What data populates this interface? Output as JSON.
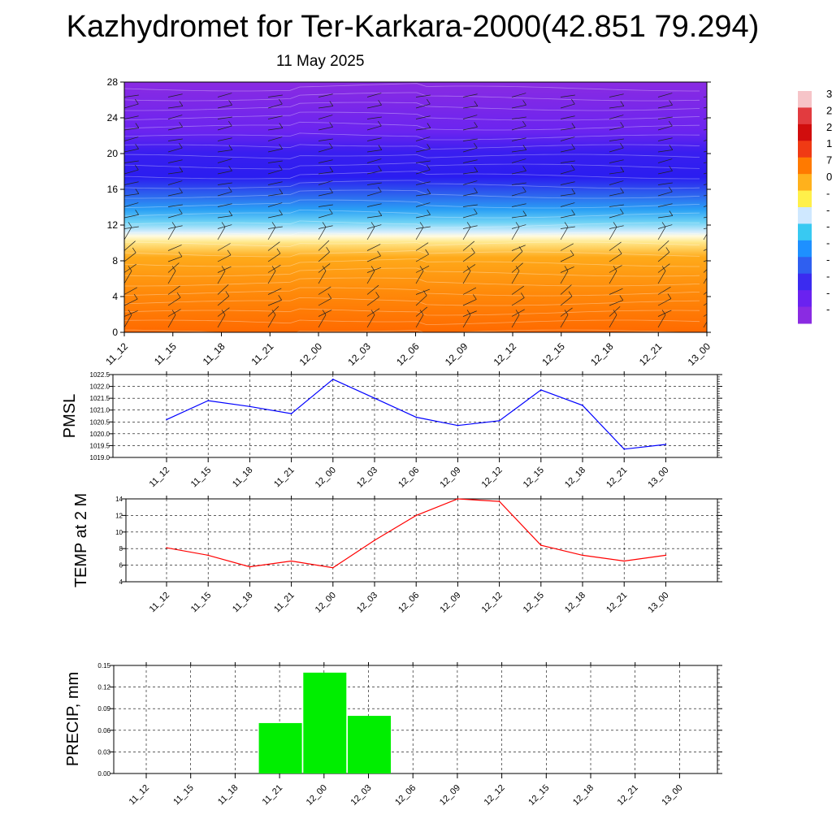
{
  "title": "Kazhydromet for Ter-Karkara-2000(42.851 79.294)",
  "subtitle": "11 May 2025",
  "time_labels": [
    "11_12",
    "11_15",
    "11_18",
    "11_21",
    "12_00",
    "12_03",
    "12_06",
    "12_09",
    "12_12",
    "12_15",
    "12_18",
    "12_21",
    "13_00"
  ],
  "chart_data": [
    {
      "type": "heatmap",
      "title": "",
      "xlabel": "",
      "ylabel": "",
      "categories": [
        "11_12",
        "11_15",
        "11_18",
        "11_21",
        "12_00",
        "12_03",
        "12_06",
        "12_09",
        "12_12",
        "12_15",
        "12_18",
        "12_21",
        "13_00"
      ],
      "y_ticks": [
        0,
        4,
        8,
        12,
        16,
        20,
        24,
        28
      ],
      "ylim": [
        0,
        28
      ],
      "overlay": "wind barbs",
      "colorbar": {
        "visible_labels": [
          "3",
          "2",
          "2",
          "1",
          "7",
          "0",
          "-",
          "-",
          "-",
          "-",
          "-",
          "-",
          "-",
          "-"
        ],
        "colors": [
          "#f6c4c8",
          "#e23b3f",
          "#d10d0d",
          "#f03a14",
          "#ff7a00",
          "#ffb11c",
          "#fff04a",
          "#cfe8ff",
          "#38c9f2",
          "#1e90ff",
          "#2f5ff0",
          "#3b2bf0",
          "#6a22f0",
          "#8a2be2"
        ]
      },
      "colors": {
        "high": "#8a2be2",
        "mid_high": "#2a1cf0",
        "mid": "#38c9f2",
        "transition": "#fff3b0",
        "low_mid": "#ffb11c",
        "low": "#ff6e00"
      }
    },
    {
      "type": "line",
      "ylabel": "PMSL",
      "x": [
        "11_12",
        "11_15",
        "11_18",
        "11_21",
        "12_00",
        "12_03",
        "12_06",
        "12_09",
        "12_12",
        "12_15",
        "12_18",
        "12_21",
        "13_00"
      ],
      "y": [
        1020.6,
        1021.4,
        1021.15,
        1020.85,
        1022.3,
        1021.5,
        1020.7,
        1020.35,
        1020.55,
        1021.85,
        1021.2,
        1019.35,
        1019.55
      ],
      "y_ticks": [
        "1019.0",
        "1019.5",
        "1020.0",
        "1020.5",
        "1021.0",
        "1021.5",
        "1022.0",
        "1022.5"
      ],
      "ylim": [
        1019.0,
        1022.5
      ],
      "grid": true,
      "color": "#0000ff"
    },
    {
      "type": "line",
      "ylabel": "TEMP at 2 M",
      "x": [
        "11_12",
        "11_15",
        "11_18",
        "11_21",
        "12_00",
        "12_03",
        "12_06",
        "12_09",
        "12_12",
        "12_15",
        "12_18",
        "12_21",
        "13_00"
      ],
      "y": [
        8.1,
        7.2,
        5.8,
        6.5,
        5.7,
        9.0,
        12.0,
        14.0,
        13.7,
        8.4,
        7.2,
        6.5,
        7.2
      ],
      "y_ticks": [
        "4",
        "6",
        "8",
        "10",
        "12",
        "14"
      ],
      "ylim": [
        4,
        14
      ],
      "grid": true,
      "color": "#ff0000"
    },
    {
      "type": "bar",
      "ylabel": "PRECIP, mm",
      "categories": [
        "11_12",
        "11_15",
        "11_18",
        "11_21",
        "12_00",
        "12_03",
        "12_06",
        "12_09",
        "12_12",
        "12_15",
        "12_18",
        "12_21",
        "13_00"
      ],
      "values": [
        0,
        0,
        0,
        0.07,
        0.14,
        0.08,
        0,
        0,
        0,
        0,
        0,
        0,
        0
      ],
      "y_ticks": [
        "0.00",
        "0.03",
        "0.06",
        "0.09",
        "0.12",
        "0.15"
      ],
      "ylim": [
        0,
        0.15
      ],
      "grid": true,
      "color": "#00ee00"
    }
  ]
}
